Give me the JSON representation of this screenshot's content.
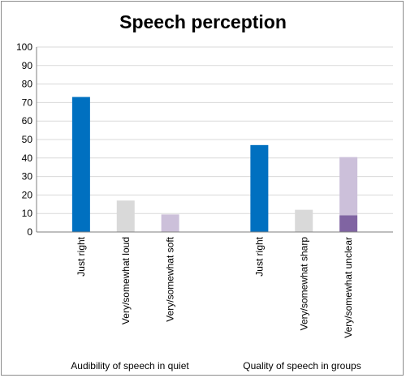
{
  "chart_data": {
    "type": "bar",
    "title": "Speech perception",
    "xlabel": "",
    "ylabel": "",
    "ylim": [
      0,
      100
    ],
    "y_ticks": [
      0,
      10,
      20,
      30,
      40,
      50,
      60,
      70,
      80,
      90,
      100
    ],
    "grid": true,
    "legend": "none",
    "groups": [
      {
        "label": "Audibility of speech in quiet",
        "categories": [
          {
            "label": "Just right",
            "segments": [
              {
                "value": 73,
                "color": "#0070c0"
              }
            ]
          },
          {
            "label": "Very/somewhat loud",
            "segments": [
              {
                "value": 17,
                "color": "#d9d9d9"
              }
            ]
          },
          {
            "label": "Very/somewhat soft",
            "segments": [
              {
                "value": 9.5,
                "color": "#ccc0da"
              }
            ]
          }
        ]
      },
      {
        "label": "Quality of speech in groups",
        "categories": [
          {
            "label": "Just right",
            "segments": [
              {
                "value": 47,
                "color": "#0070c0"
              }
            ]
          },
          {
            "label": "Very/somewhat sharp",
            "segments": [
              {
                "value": 12,
                "color": "#d9d9d9"
              }
            ]
          },
          {
            "label": "Very/somewhat unclear",
            "segments": [
              {
                "value": 9,
                "color": "#8064a2"
              },
              {
                "value": 31.5,
                "color": "#ccc0da"
              }
            ]
          }
        ]
      }
    ],
    "colors": {
      "gridline": "#d9d9d9",
      "axis": "#7f7f7f"
    }
  }
}
